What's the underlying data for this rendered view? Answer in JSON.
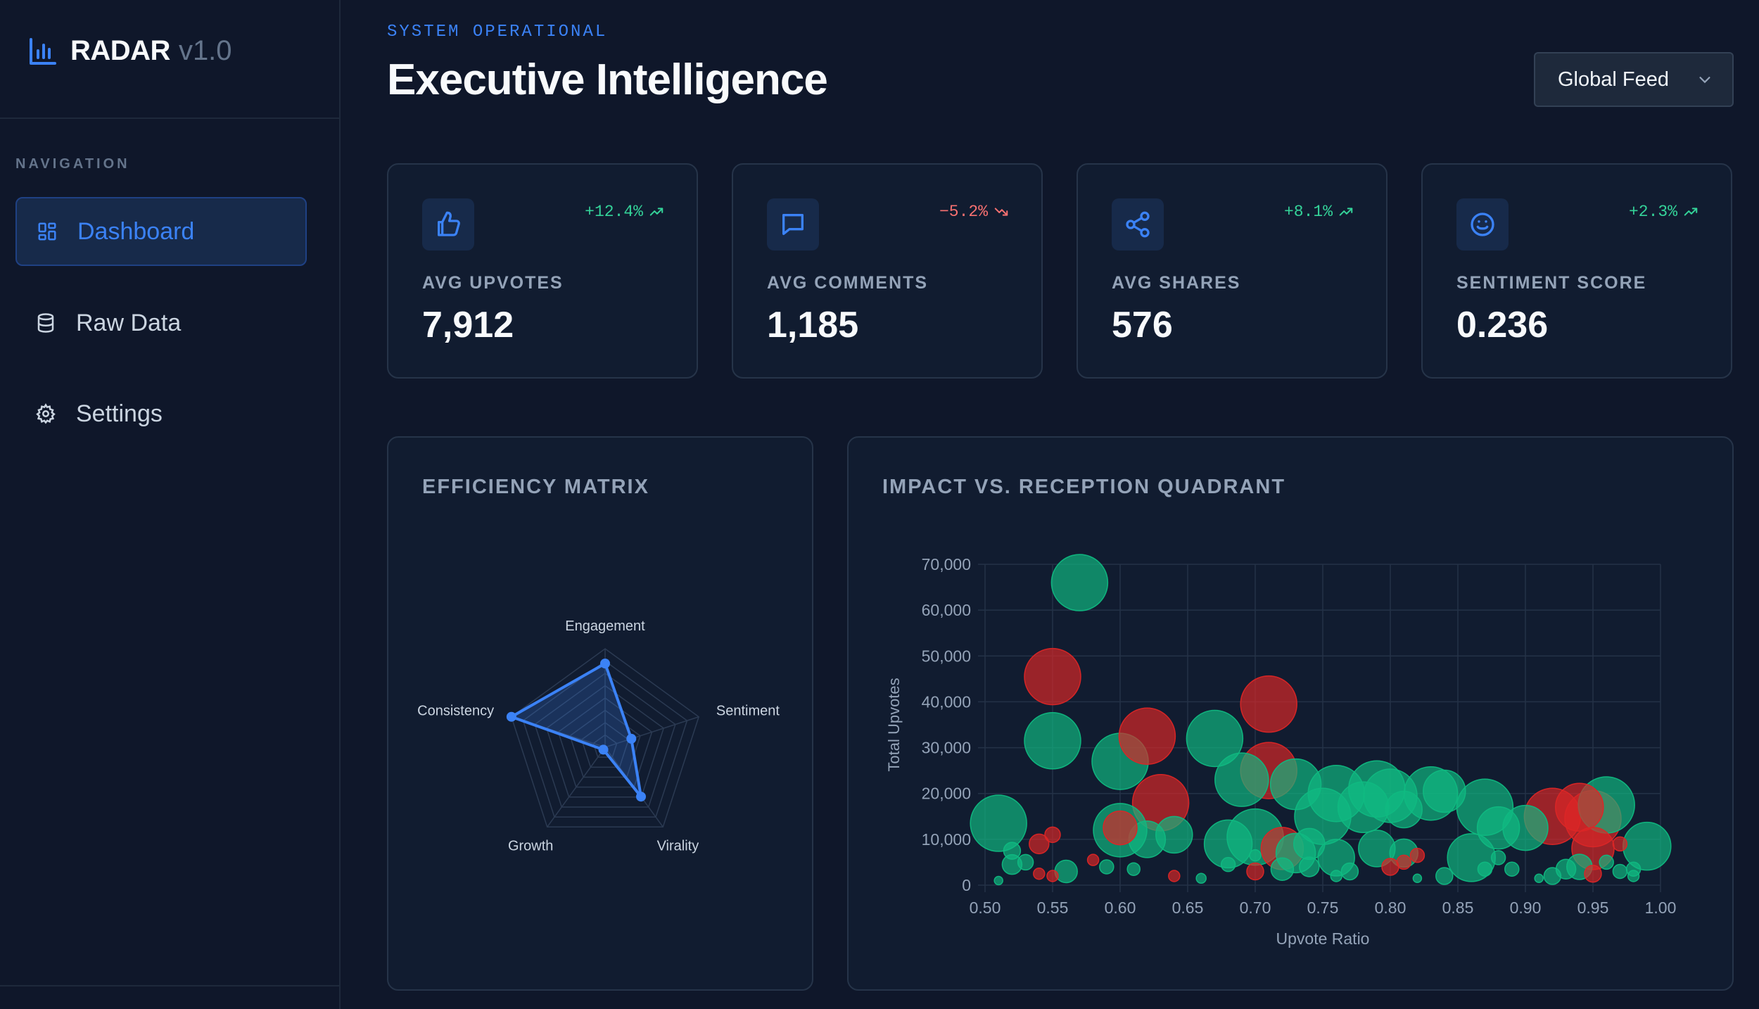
{
  "brand": {
    "name": "RADAR",
    "version": "v1.0"
  },
  "sidebar": {
    "heading": "NAVIGATION",
    "items": [
      {
        "label": "Dashboard",
        "icon": "grid-icon",
        "active": true
      },
      {
        "label": "Raw Data",
        "icon": "database-icon",
        "active": false
      },
      {
        "label": "Settings",
        "icon": "gear-icon",
        "active": false
      }
    ]
  },
  "header": {
    "status": "SYSTEM OPERATIONAL",
    "title": "Executive Intelligence",
    "feed_select": "Global Feed"
  },
  "kpis": [
    {
      "label": "AVG UPVOTES",
      "value": "7,912",
      "delta": "+12.4%",
      "trend": "up",
      "icon": "thumbs-up-icon"
    },
    {
      "label": "AVG COMMENTS",
      "value": "1,185",
      "delta": "−5.2%",
      "trend": "down",
      "icon": "comment-icon"
    },
    {
      "label": "AVG SHARES",
      "value": "576",
      "delta": "+8.1%",
      "trend": "up",
      "icon": "share-icon"
    },
    {
      "label": "SENTIMENT SCORE",
      "value": "0.236",
      "delta": "+2.3%",
      "trend": "up",
      "icon": "smiley-icon"
    }
  ],
  "colors": {
    "accent": "#3b82f6",
    "positive": "#10b981",
    "negative": "#dc2626",
    "background": "#0f172a",
    "card": "#111c30"
  },
  "panels": {
    "radar_title": "EFFICIENCY MATRIX",
    "scatter_title": "IMPACT VS. RECEPTION QUADRANT"
  },
  "chart_data": [
    {
      "type": "radar",
      "title": "",
      "axes": [
        "Engagement",
        "Sentiment",
        "Virality",
        "Growth",
        "Consistency"
      ],
      "values": [
        0.85,
        0.28,
        0.62,
        0.03,
        1.0
      ],
      "range": [
        0,
        1
      ],
      "color": "#3b82f6"
    },
    {
      "type": "scatter",
      "subtype": "bubble",
      "title": "",
      "xlabel": "Upvote Ratio",
      "ylabel": "Total Upvotes",
      "xlim": [
        0.5,
        1.0
      ],
      "ylim": [
        0,
        70000
      ],
      "xticks": [
        "0.50",
        "0.55",
        "0.60",
        "0.65",
        "0.70",
        "0.75",
        "0.80",
        "0.85",
        "0.90",
        "0.95",
        "1.00"
      ],
      "yticks": [
        "0",
        "10,000",
        "20,000",
        "30,000",
        "40,000",
        "50,000",
        "60,000",
        "70,000"
      ],
      "grid": true,
      "points": [
        {
          "x": 0.57,
          "y": 66000,
          "r": 40,
          "sentiment": "positive"
        },
        {
          "x": 0.55,
          "y": 45500,
          "r": 40,
          "sentiment": "negative"
        },
        {
          "x": 0.55,
          "y": 31500,
          "r": 40,
          "sentiment": "positive"
        },
        {
          "x": 0.6,
          "y": 27000,
          "r": 40,
          "sentiment": "positive"
        },
        {
          "x": 0.62,
          "y": 32500,
          "r": 40,
          "sentiment": "negative"
        },
        {
          "x": 0.67,
          "y": 32000,
          "r": 40,
          "sentiment": "positive"
        },
        {
          "x": 0.71,
          "y": 39500,
          "r": 40,
          "sentiment": "negative"
        },
        {
          "x": 0.71,
          "y": 25000,
          "r": 40,
          "sentiment": "negative"
        },
        {
          "x": 0.69,
          "y": 23000,
          "r": 38,
          "sentiment": "positive"
        },
        {
          "x": 0.73,
          "y": 22000,
          "r": 36,
          "sentiment": "positive"
        },
        {
          "x": 0.63,
          "y": 18000,
          "r": 40,
          "sentiment": "negative"
        },
        {
          "x": 0.51,
          "y": 13500,
          "r": 40,
          "sentiment": "positive"
        },
        {
          "x": 0.6,
          "y": 12000,
          "r": 38,
          "sentiment": "positive"
        },
        {
          "x": 0.6,
          "y": 12500,
          "r": 24,
          "sentiment": "negative"
        },
        {
          "x": 0.62,
          "y": 10000,
          "r": 26,
          "sentiment": "positive"
        },
        {
          "x": 0.64,
          "y": 11000,
          "r": 26,
          "sentiment": "positive"
        },
        {
          "x": 0.68,
          "y": 9000,
          "r": 34,
          "sentiment": "positive"
        },
        {
          "x": 0.7,
          "y": 10500,
          "r": 40,
          "sentiment": "positive"
        },
        {
          "x": 0.72,
          "y": 8000,
          "r": 30,
          "sentiment": "negative"
        },
        {
          "x": 0.73,
          "y": 7000,
          "r": 28,
          "sentiment": "positive"
        },
        {
          "x": 0.75,
          "y": 15000,
          "r": 40,
          "sentiment": "positive"
        },
        {
          "x": 0.76,
          "y": 20000,
          "r": 40,
          "sentiment": "positive"
        },
        {
          "x": 0.78,
          "y": 17000,
          "r": 36,
          "sentiment": "positive"
        },
        {
          "x": 0.79,
          "y": 21000,
          "r": 40,
          "sentiment": "positive"
        },
        {
          "x": 0.8,
          "y": 19500,
          "r": 38,
          "sentiment": "positive"
        },
        {
          "x": 0.81,
          "y": 16500,
          "r": 26,
          "sentiment": "positive"
        },
        {
          "x": 0.83,
          "y": 20000,
          "r": 38,
          "sentiment": "positive"
        },
        {
          "x": 0.84,
          "y": 20500,
          "r": 30,
          "sentiment": "positive"
        },
        {
          "x": 0.87,
          "y": 17000,
          "r": 40,
          "sentiment": "positive"
        },
        {
          "x": 0.88,
          "y": 12500,
          "r": 30,
          "sentiment": "positive"
        },
        {
          "x": 0.9,
          "y": 12500,
          "r": 32,
          "sentiment": "positive"
        },
        {
          "x": 0.92,
          "y": 15000,
          "r": 40,
          "sentiment": "negative"
        },
        {
          "x": 0.94,
          "y": 17000,
          "r": 34,
          "sentiment": "negative"
        },
        {
          "x": 0.95,
          "y": 14500,
          "r": 40,
          "sentiment": "negative"
        },
        {
          "x": 0.96,
          "y": 17500,
          "r": 40,
          "sentiment": "positive"
        },
        {
          "x": 0.95,
          "y": 8000,
          "r": 30,
          "sentiment": "negative"
        },
        {
          "x": 0.99,
          "y": 8500,
          "r": 34,
          "sentiment": "positive"
        },
        {
          "x": 0.86,
          "y": 6000,
          "r": 34,
          "sentiment": "positive"
        },
        {
          "x": 0.76,
          "y": 6000,
          "r": 26,
          "sentiment": "positive"
        },
        {
          "x": 0.79,
          "y": 8000,
          "r": 26,
          "sentiment": "positive"
        },
        {
          "x": 0.81,
          "y": 7000,
          "r": 20,
          "sentiment": "positive"
        },
        {
          "x": 0.74,
          "y": 9000,
          "r": 22,
          "sentiment": "positive"
        },
        {
          "x": 0.72,
          "y": 3500,
          "r": 16,
          "sentiment": "positive"
        },
        {
          "x": 0.56,
          "y": 3000,
          "r": 16,
          "sentiment": "positive"
        },
        {
          "x": 0.52,
          "y": 4500,
          "r": 14,
          "sentiment": "positive"
        },
        {
          "x": 0.54,
          "y": 9000,
          "r": 14,
          "sentiment": "negative"
        },
        {
          "x": 0.55,
          "y": 11000,
          "r": 11,
          "sentiment": "negative"
        },
        {
          "x": 0.52,
          "y": 7500,
          "r": 12,
          "sentiment": "positive"
        },
        {
          "x": 0.53,
          "y": 5000,
          "r": 11,
          "sentiment": "positive"
        },
        {
          "x": 0.55,
          "y": 2000,
          "r": 8,
          "sentiment": "negative"
        },
        {
          "x": 0.58,
          "y": 5500,
          "r": 8,
          "sentiment": "negative"
        },
        {
          "x": 0.59,
          "y": 4000,
          "r": 10,
          "sentiment": "positive"
        },
        {
          "x": 0.61,
          "y": 3500,
          "r": 9,
          "sentiment": "positive"
        },
        {
          "x": 0.64,
          "y": 2000,
          "r": 8,
          "sentiment": "negative"
        },
        {
          "x": 0.66,
          "y": 1500,
          "r": 7,
          "sentiment": "positive"
        },
        {
          "x": 0.68,
          "y": 4500,
          "r": 10,
          "sentiment": "positive"
        },
        {
          "x": 0.7,
          "y": 3000,
          "r": 12,
          "sentiment": "negative"
        },
        {
          "x": 0.74,
          "y": 4000,
          "r": 14,
          "sentiment": "positive"
        },
        {
          "x": 0.77,
          "y": 3000,
          "r": 12,
          "sentiment": "positive"
        },
        {
          "x": 0.8,
          "y": 4000,
          "r": 12,
          "sentiment": "negative"
        },
        {
          "x": 0.81,
          "y": 5000,
          "r": 10,
          "sentiment": "negative"
        },
        {
          "x": 0.82,
          "y": 6500,
          "r": 10,
          "sentiment": "negative"
        },
        {
          "x": 0.84,
          "y": 2000,
          "r": 12,
          "sentiment": "positive"
        },
        {
          "x": 0.87,
          "y": 3500,
          "r": 10,
          "sentiment": "positive"
        },
        {
          "x": 0.89,
          "y": 3500,
          "r": 10,
          "sentiment": "positive"
        },
        {
          "x": 0.92,
          "y": 2000,
          "r": 12,
          "sentiment": "positive"
        },
        {
          "x": 0.93,
          "y": 3500,
          "r": 14,
          "sentiment": "positive"
        },
        {
          "x": 0.94,
          "y": 4000,
          "r": 18,
          "sentiment": "positive"
        },
        {
          "x": 0.95,
          "y": 2500,
          "r": 12,
          "sentiment": "negative"
        },
        {
          "x": 0.97,
          "y": 3000,
          "r": 10,
          "sentiment": "positive"
        },
        {
          "x": 0.98,
          "y": 2000,
          "r": 8,
          "sentiment": "positive"
        },
        {
          "x": 0.98,
          "y": 3500,
          "r": 10,
          "sentiment": "positive"
        },
        {
          "x": 0.97,
          "y": 9000,
          "r": 10,
          "sentiment": "negative"
        },
        {
          "x": 0.54,
          "y": 2500,
          "r": 8,
          "sentiment": "negative"
        },
        {
          "x": 0.51,
          "y": 1000,
          "r": 6,
          "sentiment": "positive"
        },
        {
          "x": 0.7,
          "y": 6500,
          "r": 8,
          "sentiment": "positive"
        },
        {
          "x": 0.76,
          "y": 2000,
          "r": 8,
          "sentiment": "positive"
        },
        {
          "x": 0.82,
          "y": 1500,
          "r": 6,
          "sentiment": "positive"
        },
        {
          "x": 0.88,
          "y": 6000,
          "r": 10,
          "sentiment": "positive"
        },
        {
          "x": 0.91,
          "y": 1500,
          "r": 6,
          "sentiment": "positive"
        },
        {
          "x": 0.96,
          "y": 5000,
          "r": 10,
          "sentiment": "positive"
        }
      ]
    }
  ]
}
